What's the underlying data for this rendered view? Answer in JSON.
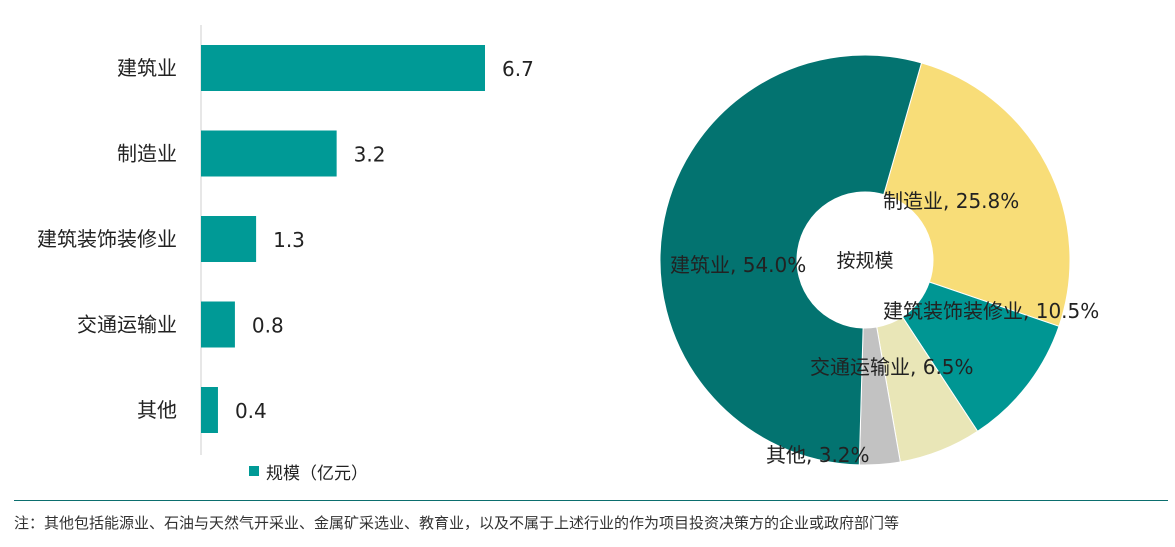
{
  "chart_data": [
    {
      "type": "bar",
      "orientation": "horizontal",
      "categories": [
        "建筑业",
        "制造业",
        "建筑装饰装修业",
        "交通运输业",
        "其他"
      ],
      "values": [
        6.7,
        3.2,
        1.3,
        0.8,
        0.4
      ],
      "data_labels": [
        "6.7",
        "3.2",
        "1.3",
        "0.8",
        "0.4"
      ],
      "series": [
        {
          "name": "规模（亿元）",
          "values": [
            6.7,
            3.2,
            1.3,
            0.8,
            0.4
          ]
        }
      ],
      "xlim": [
        0,
        7.5
      ],
      "grid": false,
      "legend_position": "bottom",
      "color": "#009a96"
    },
    {
      "type": "pie",
      "donut": true,
      "center_label": "按规模",
      "slices": [
        {
          "label": "建筑业",
          "value": 54.0,
          "display": "建筑业, 54.0%",
          "color": "#037370"
        },
        {
          "label": "制造业",
          "value": 25.8,
          "display": "制造业, 25.8%",
          "color": "#f8dd78"
        },
        {
          "label": "建筑装饰装修业",
          "value": 10.5,
          "display": "建筑装饰装修业, 10.5%",
          "color": "#009693"
        },
        {
          "label": "交通运输业",
          "value": 6.5,
          "display": "交通运输业, 6.5%",
          "color": "#e9e6b7"
        },
        {
          "label": "其他",
          "value": 3.2,
          "display": "其他, 3.2%",
          "color": "#c2c2c2"
        }
      ]
    }
  ],
  "footnote": "注：其他包括能源业、石油与天然气开采业、金属矿采选业、教育业，以及不属于上述行业的作为项目投资决策方的企业或政府部门等"
}
